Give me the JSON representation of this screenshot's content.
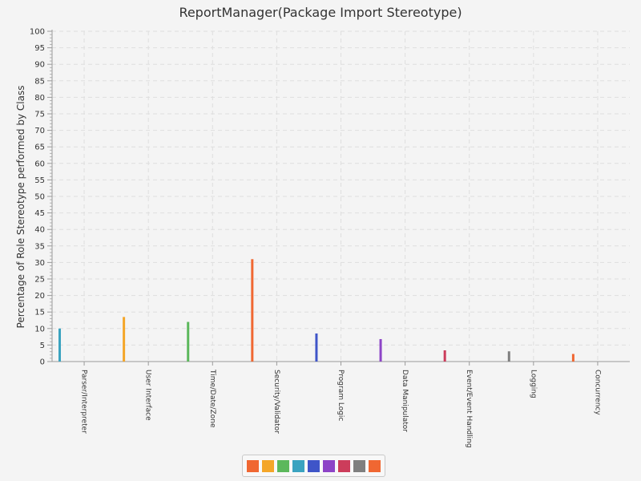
{
  "chart_data": {
    "type": "bar",
    "title": "ReportManager(Package Import Stereotype)",
    "xlabel": "",
    "ylabel": "Percentage of Role Stereotype performed by Class",
    "ylim": [
      0,
      100
    ],
    "ytick_step": 5,
    "grid": true,
    "legend_position": "bottom",
    "categories": [
      "Parser/Interpreter",
      "User Interface",
      "Time/Date/Zone",
      "Security/Validator",
      "Program Logic",
      "Data Manipulator",
      "Event/Event Handling",
      "Logging",
      "Concurrency"
    ],
    "values": [
      10,
      13.5,
      12,
      31,
      8.5,
      6.8,
      3.4,
      3.1,
      2.3
    ],
    "colors": [
      "#3aa3c0",
      "#f4a629",
      "#5cb85c",
      "#f06732",
      "#3f55c8",
      "#8d44c7",
      "#cc3d5b",
      "#7f7f7f",
      "#f06732"
    ],
    "legend_colors": [
      "#f06732",
      "#f4a629",
      "#5cb85c",
      "#3aa3c0",
      "#3f55c8",
      "#8d44c7",
      "#cc3d5b",
      "#7f7f7f",
      "#f06732"
    ]
  }
}
